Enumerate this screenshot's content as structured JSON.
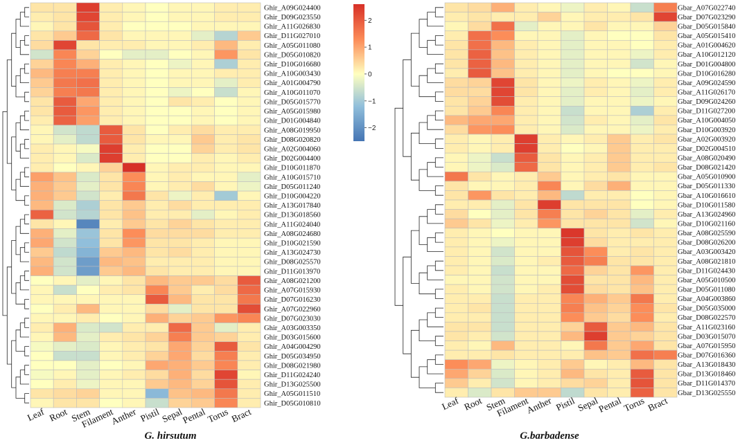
{
  "chart_data": [
    {
      "type": "heatmap",
      "title": "G. hirsutum",
      "samples": [
        "Leaf",
        "Root",
        "Stem",
        "Filament",
        "Anther",
        "Pistil",
        "Sepal",
        "Pental",
        "Torus",
        "Bract"
      ],
      "genes": [
        "Ghir_A09G024400",
        "Ghir_D09G023550",
        "Ghir_A11G026830",
        "Ghir_D11G027010",
        "Ghir_A05G011080",
        "Ghir_D05G010820",
        "Ghir_D10G016680",
        "Ghir_A10G003430",
        "Ghir_A01G004790",
        "Ghir_A10G011070",
        "Ghir_D05G015770",
        "Ghir_A05G015980",
        "Ghir_D01G004840",
        "Ghir_A08G019950",
        "Ghir_D08G020820",
        "Ghir_A02G004060",
        "Ghir_D02G004400",
        "Ghir_D10G011870",
        "Ghir_A10G015710",
        "Ghir_D05G011240",
        "Ghir_D10G004220",
        "Ghir_A13G017840",
        "Ghir_D13G018560",
        "Ghir_A11G024040",
        "Ghir_A08G024680",
        "Ghir_D10G021590",
        "Ghir_A13G024730",
        "Ghir_D08G025570",
        "Ghir_D11G013970",
        "Ghir_A08G021200",
        "Ghir_A07G015930",
        "Ghir_D07G016230",
        "Ghir_A07G022960",
        "Ghir_D07G023030",
        "Ghir_A03G003350",
        "Ghir_D03G015600",
        "Ghir_A04G004290",
        "Ghir_D05G034950",
        "Ghir_D08G021980",
        "Ghir_D11G024240",
        "Ghir_D13G025500",
        "Ghir_A05G011510",
        "Ghir_D05G010810"
      ],
      "values": [
        [
          0.3,
          0.3,
          2.4,
          0.2,
          0.1,
          0.0,
          0.1,
          0.1,
          0.2,
          0.2
        ],
        [
          0.2,
          0.3,
          2.3,
          0.2,
          0.1,
          0.0,
          0.1,
          0.1,
          0.2,
          0.2
        ],
        [
          0.1,
          0.3,
          2.1,
          0.2,
          0.0,
          0.0,
          0.0,
          0.1,
          0.1,
          0.1
        ],
        [
          0.3,
          0.6,
          1.8,
          0.3,
          0.1,
          0.1,
          0.1,
          -0.3,
          -0.8,
          0.6
        ],
        [
          0.4,
          2.3,
          0.3,
          0.2,
          0.2,
          0.1,
          0.1,
          0.2,
          0.8,
          0.2
        ],
        [
          -0.5,
          1.4,
          0.5,
          0.0,
          -0.3,
          -0.3,
          0.0,
          0.1,
          1.2,
          0.3
        ],
        [
          0.5,
          1.4,
          0.9,
          0.2,
          0.1,
          0.0,
          -0.2,
          0.1,
          -0.9,
          0.2
        ],
        [
          0.8,
          1.5,
          1.5,
          0.2,
          0.1,
          0.0,
          0.1,
          0.1,
          0.2,
          0.2
        ],
        [
          0.6,
          1.6,
          1.7,
          0.2,
          0.1,
          0.0,
          0.1,
          0.1,
          -0.3,
          0.2
        ],
        [
          0.5,
          1.5,
          1.6,
          0.2,
          0.1,
          0.0,
          -0.2,
          0.0,
          -0.6,
          0.1
        ],
        [
          0.3,
          2.0,
          1.0,
          0.2,
          0.1,
          0.0,
          0.3,
          0.2,
          0.0,
          0.1
        ],
        [
          0.3,
          2.0,
          1.2,
          0.2,
          0.1,
          0.0,
          0.0,
          0.1,
          0.0,
          0.1
        ],
        [
          0.2,
          1.9,
          1.1,
          0.2,
          0.1,
          0.0,
          0.0,
          0.1,
          0.0,
          0.1
        ],
        [
          0.1,
          -0.5,
          -0.7,
          2.0,
          0.3,
          0.0,
          0.2,
          0.4,
          0.2,
          0.2
        ],
        [
          0.1,
          -0.3,
          -0.7,
          2.0,
          0.3,
          0.1,
          0.1,
          0.6,
          0.2,
          0.3
        ],
        [
          0.2,
          0.1,
          -0.1,
          2.4,
          0.2,
          0.0,
          0.0,
          0.5,
          0.2,
          0.3
        ],
        [
          0.2,
          0.1,
          -0.4,
          2.4,
          0.2,
          0.0,
          0.0,
          0.2,
          0.1,
          0.2
        ],
        [
          0.2,
          0.0,
          0.1,
          0.5,
          2.6,
          0.1,
          0.2,
          0.2,
          0.1,
          0.1
        ],
        [
          1.1,
          0.7,
          -0.4,
          0.3,
          1.3,
          0.1,
          0.2,
          0.1,
          0.1,
          -0.3
        ],
        [
          0.9,
          0.6,
          -0.3,
          0.3,
          1.4,
          0.1,
          0.2,
          0.4,
          0.1,
          -0.2
        ],
        [
          0.9,
          0.6,
          -0.5,
          0.2,
          1.6,
          0.3,
          -0.2,
          0.2,
          -1.0,
          0.1
        ],
        [
          0.8,
          -0.4,
          -0.9,
          0.3,
          0.6,
          0.2,
          0.4,
          0.2,
          0.2,
          0.2
        ],
        [
          1.9,
          -0.5,
          -0.8,
          0.3,
          0.7,
          0.2,
          0.2,
          -0.3,
          0.1,
          0.2
        ],
        [
          0.3,
          0.1,
          -2.2,
          0.2,
          0.6,
          0.3,
          0.5,
          0.3,
          0.2,
          0.2
        ],
        [
          0.9,
          -0.3,
          -1.1,
          0.3,
          1.3,
          0.4,
          0.4,
          0.4,
          0.2,
          0.2
        ],
        [
          1.0,
          -0.5,
          -1.2,
          0.3,
          1.2,
          0.3,
          0.3,
          0.2,
          0.1,
          0.1
        ],
        [
          0.6,
          -0.7,
          -1.4,
          0.6,
          0.8,
          0.3,
          0.4,
          0.2,
          0.1,
          0.1
        ],
        [
          0.8,
          -0.5,
          -1.8,
          0.8,
          0.7,
          0.2,
          0.2,
          0.2,
          0.1,
          0.1
        ],
        [
          0.9,
          -0.5,
          -1.8,
          0.6,
          0.8,
          0.3,
          0.2,
          0.2,
          0.1,
          0.1
        ],
        [
          0.0,
          0.1,
          -0.3,
          0.1,
          0.3,
          0.8,
          0.6,
          0.6,
          0.4,
          2.0
        ],
        [
          0.1,
          -0.6,
          0.0,
          0.2,
          0.3,
          1.4,
          0.6,
          0.2,
          0.4,
          1.8
        ],
        [
          0.1,
          0.1,
          0.1,
          0.1,
          0.1,
          2.0,
          0.8,
          0.3,
          0.3,
          1.6
        ],
        [
          0.0,
          0.2,
          0.8,
          0.1,
          0.1,
          0.4,
          -0.3,
          0.3,
          0.3,
          2.2
        ],
        [
          0.1,
          0.1,
          0.2,
          0.0,
          0.1,
          0.9,
          0.5,
          0.6,
          1.2,
          1.4
        ],
        [
          0.2,
          0.9,
          -0.4,
          -0.5,
          0.2,
          0.2,
          1.8,
          0.6,
          -0.3,
          0.2
        ],
        [
          0.1,
          0.8,
          -0.3,
          0.2,
          0.3,
          0.5,
          1.5,
          0.6,
          0.5,
          0.2
        ],
        [
          -0.1,
          -0.3,
          -0.4,
          0.1,
          0.2,
          0.3,
          1.0,
          0.5,
          2.0,
          0.3
        ],
        [
          0.0,
          -0.6,
          -0.6,
          0.1,
          0.2,
          0.5,
          1.0,
          0.4,
          1.5,
          0.2
        ],
        [
          0.0,
          0.0,
          -0.3,
          0.0,
          0.1,
          1.0,
          0.9,
          0.6,
          1.4,
          0.2
        ],
        [
          -0.1,
          0.1,
          -0.3,
          0.1,
          0.2,
          0.4,
          0.9,
          0.4,
          2.3,
          0.1
        ],
        [
          0.0,
          0.2,
          -0.2,
          0.1,
          0.1,
          0.6,
          0.8,
          0.5,
          2.1,
          0.2
        ],
        [
          0.3,
          0.4,
          0.5,
          0.1,
          0.1,
          -1.3,
          0.7,
          0.8,
          1.6,
          0.2
        ],
        [
          0.1,
          0.3,
          0.3,
          0.0,
          0.1,
          -0.6,
          0.5,
          0.6,
          1.4,
          0.2
        ]
      ],
      "colorbar": {
        "min": -2.5,
        "max": 2.6,
        "ticks": [
          2,
          1,
          0,
          -1,
          -2
        ],
        "labels": [
          "2",
          "1",
          "0",
          "−1",
          "−2"
        ]
      }
    },
    {
      "type": "heatmap",
      "title": "G.barbadense",
      "samples": [
        "Leaf",
        "Root",
        "Stem",
        "Filament",
        "Anther",
        "Pistil",
        "Sepal",
        "Pental",
        "Torus",
        "Bract"
      ],
      "genes": [
        "Gbar_A07G022740",
        "Gbar_D07G023290",
        "Gbar_D05G015840",
        "Gbar_A05G015410",
        "Gbar_A01G004620",
        "Gbar_A10G012120",
        "Gbar_D01G004800",
        "Gbar_D10G016280",
        "Gbar_A09G024590",
        "Gbar_A11G026170",
        "Gbar_D09G024260",
        "Gbar_D11G027200",
        "Gbar_A10G004050",
        "Gbar_D10G003920",
        "Gbar_A02G003920",
        "Gbar_D02G004510",
        "Gbar_A08G020490",
        "Gbar_D08G021420",
        "Gbar_A05G010900",
        "Gbar_D05G011330",
        "Gbar_A10G016610",
        "Gbar_D10G011580",
        "Gbar_A13G024960",
        "Gbar_D10G021160",
        "Gbar_A08G025590",
        "Gbar_D08G026200",
        "Gbar_A03G003420",
        "Gbar_A08G021810",
        "Gbar_D11G024430",
        "Gbar_A05G010500",
        "Gbar_D05G011080",
        "Gbar_A04G003860",
        "Gbar_D05G035000",
        "Gbar_D08G022570",
        "Gbar_A11G023160",
        "Gbar_D03G015070",
        "Gbar_A07G015950",
        "Gbar_D07G016360",
        "Gbar_A13G018430",
        "Gbar_D13G018460",
        "Gbar_D11G014370",
        "Gbar_D13G025550"
      ],
      "values": [
        [
          0.3,
          0.4,
          0.9,
          0.2,
          0.1,
          -0.2,
          0.2,
          0.1,
          -0.6,
          1.5
        ],
        [
          0.2,
          0.3,
          0.2,
          0.2,
          0.5,
          0.1,
          0.2,
          0.2,
          0.3,
          2.3
        ],
        [
          0.1,
          0.4,
          1.7,
          -0.3,
          0.1,
          0.1,
          0.3,
          0.1,
          0.1,
          0.5
        ],
        [
          0.2,
          1.7,
          1.3,
          0.1,
          0.1,
          -0.3,
          0.1,
          0.0,
          0.0,
          0.3
        ],
        [
          0.3,
          1.7,
          0.8,
          0.2,
          0.1,
          -0.3,
          0.1,
          0.1,
          0.0,
          0.2
        ],
        [
          0.3,
          1.9,
          0.7,
          0.2,
          0.1,
          -0.3,
          0.1,
          0.1,
          -0.2,
          0.2
        ],
        [
          0.3,
          1.9,
          0.8,
          0.2,
          0.1,
          -0.3,
          0.1,
          0.1,
          -0.5,
          0.1
        ],
        [
          0.2,
          2.0,
          0.7,
          0.2,
          0.1,
          -0.3,
          0.1,
          0.0,
          0.0,
          0.1
        ],
        [
          0.4,
          0.5,
          2.3,
          0.3,
          0.1,
          -0.2,
          0.2,
          0.1,
          -0.2,
          0.2
        ],
        [
          0.4,
          0.4,
          2.3,
          0.3,
          0.1,
          -0.3,
          0.2,
          0.1,
          -0.3,
          0.2
        ],
        [
          0.3,
          0.5,
          2.2,
          0.2,
          0.1,
          -0.3,
          0.1,
          0.1,
          -0.2,
          0.1
        ],
        [
          0.3,
          0.6,
          1.4,
          0.2,
          0.1,
          -0.6,
          0.1,
          0.1,
          -0.9,
          0.2
        ],
        [
          0.8,
          1.0,
          1.0,
          0.2,
          0.1,
          -0.5,
          0.2,
          0.1,
          -0.3,
          0.3
        ],
        [
          0.4,
          1.2,
          1.3,
          0.2,
          0.1,
          -0.4,
          0.1,
          0.1,
          -0.2,
          0.2
        ],
        [
          0.2,
          0.1,
          0.2,
          2.4,
          0.2,
          0.1,
          0.2,
          0.6,
          0.2,
          0.3
        ],
        [
          0.2,
          0.1,
          0.2,
          2.4,
          0.2,
          0.0,
          0.1,
          0.6,
          0.2,
          0.2
        ],
        [
          0.1,
          -0.2,
          -0.6,
          2.0,
          0.3,
          0.1,
          0.2,
          0.6,
          0.2,
          0.2
        ],
        [
          0.1,
          -0.2,
          -0.4,
          1.8,
          0.3,
          0.1,
          0.2,
          0.6,
          0.2,
          0.3
        ],
        [
          1.6,
          0.3,
          0.1,
          0.2,
          0.6,
          0.1,
          0.2,
          0.3,
          0.1,
          0.1
        ],
        [
          0.3,
          0.1,
          0.1,
          0.2,
          1.4,
          0.1,
          0.4,
          0.9,
          0.1,
          0.1
        ],
        [
          0.3,
          1.2,
          0.3,
          0.2,
          0.8,
          -0.7,
          0.2,
          0.2,
          0.0,
          0.1
        ],
        [
          0.2,
          0.2,
          -0.3,
          0.3,
          2.4,
          0.3,
          0.3,
          0.3,
          0.0,
          0.1
        ],
        [
          0.4,
          0.0,
          -0.3,
          0.3,
          1.5,
          0.3,
          0.5,
          0.3,
          -0.3,
          0.2
        ],
        [
          0.6,
          0.3,
          -0.2,
          0.2,
          1.2,
          0.3,
          0.3,
          0.3,
          -0.5,
          0.1
        ],
        [
          0.2,
          0.1,
          0.0,
          0.1,
          0.1,
          2.5,
          0.3,
          0.2,
          0.3,
          0.2
        ],
        [
          0.2,
          0.1,
          -0.2,
          0.1,
          0.1,
          2.4,
          0.4,
          0.2,
          0.2,
          0.2
        ],
        [
          0.2,
          0.1,
          -0.5,
          0.1,
          0.1,
          2.1,
          1.3,
          0.2,
          0.3,
          0.2
        ],
        [
          0.2,
          0.1,
          -0.4,
          0.1,
          0.2,
          2.0,
          1.5,
          0.3,
          0.3,
          0.2
        ],
        [
          0.2,
          0.1,
          -0.6,
          0.1,
          0.1,
          1.8,
          0.5,
          0.3,
          1.2,
          0.2
        ],
        [
          0.1,
          0.1,
          -0.5,
          0.1,
          0.1,
          2.2,
          0.3,
          0.3,
          0.8,
          0.2
        ],
        [
          0.2,
          0.1,
          -0.5,
          0.1,
          0.2,
          2.2,
          0.4,
          0.3,
          0.7,
          0.2
        ],
        [
          0.2,
          0.2,
          -0.6,
          0.2,
          0.2,
          1.4,
          0.9,
          0.6,
          1.6,
          0.2
        ],
        [
          0.2,
          0.3,
          -0.6,
          0.2,
          0.2,
          1.5,
          0.7,
          0.5,
          1.3,
          0.3
        ],
        [
          0.2,
          0.2,
          -0.6,
          0.2,
          0.2,
          1.3,
          0.6,
          0.4,
          1.3,
          0.2
        ],
        [
          0.3,
          0.3,
          -0.6,
          0.2,
          0.2,
          0.5,
          2.0,
          0.6,
          0.8,
          0.3
        ],
        [
          0.3,
          0.2,
          -0.5,
          0.2,
          0.2,
          0.8,
          2.4,
          0.6,
          0.5,
          0.3
        ],
        [
          0.2,
          0.1,
          0.8,
          0.2,
          0.2,
          0.1,
          1.6,
          0.6,
          1.0,
          0.3
        ],
        [
          0.2,
          0.2,
          0.3,
          0.2,
          0.2,
          0.2,
          0.7,
          0.6,
          1.7,
          1.5
        ],
        [
          1.3,
          1.0,
          -0.2,
          0.1,
          0.2,
          0.6,
          0.1,
          0.2,
          0.8,
          0.3
        ],
        [
          1.0,
          0.5,
          -0.4,
          0.1,
          0.2,
          0.8,
          0.3,
          0.2,
          2.0,
          0.3
        ],
        [
          0.6,
          0.2,
          -0.5,
          0.1,
          0.2,
          0.4,
          0.5,
          0.2,
          2.1,
          0.3
        ],
        [
          0.2,
          -0.4,
          0.3,
          0.6,
          0.6,
          -0.7,
          0.3,
          0.2,
          1.9,
          0.3
        ]
      ]
    }
  ]
}
